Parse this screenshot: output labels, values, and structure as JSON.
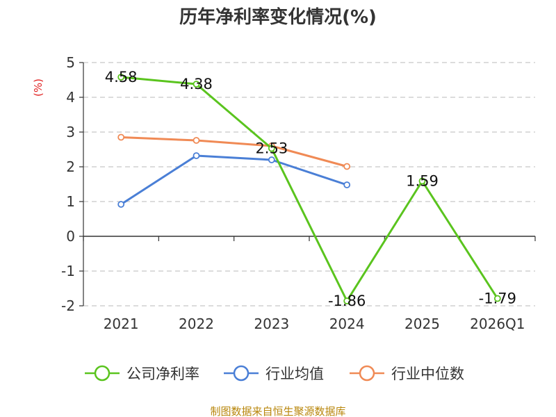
{
  "title": "历年净利率变化情况(%)",
  "unit_label": "(%)",
  "source": "制图数据来自恒生聚源数据库",
  "chart_data": {
    "type": "line",
    "title": "历年净利率变化情况(%)",
    "ylabel": "(%)",
    "xlabel": "",
    "categories": [
      "2021",
      "2022",
      "2023",
      "2024",
      "2025",
      "2026Q1"
    ],
    "ylim": [
      -2,
      5
    ],
    "yticks": [
      5,
      4,
      3,
      2,
      1,
      0,
      -1,
      -2
    ],
    "grid": true,
    "legend_position": "bottom",
    "series": [
      {
        "name": "公司净利率",
        "color": "#5ac41e",
        "values": [
          4.58,
          4.38,
          2.53,
          -1.86,
          1.59,
          -1.79
        ],
        "labels": [
          "4.58",
          "4.38",
          "2.53",
          "-1.86",
          "1.59",
          "-1.79"
        ]
      },
      {
        "name": "行业均值",
        "color": "#4a7fd6",
        "values": [
          0.92,
          2.32,
          2.2,
          1.48,
          null,
          null
        ],
        "labels": []
      },
      {
        "name": "行业中位数",
        "color": "#f08a55",
        "values": [
          2.85,
          2.76,
          2.6,
          2.01,
          null,
          null
        ],
        "labels": []
      }
    ]
  }
}
